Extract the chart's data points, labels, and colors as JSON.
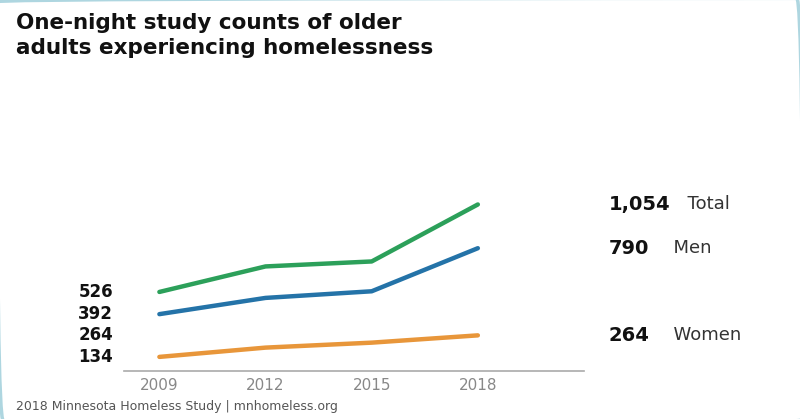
{
  "title": "One-night study counts of older\nadults experiencing homelessness",
  "years": [
    2009,
    2012,
    2015,
    2018
  ],
  "total": [
    526,
    680,
    710,
    1054
  ],
  "men": [
    392,
    490,
    530,
    790
  ],
  "women": [
    134,
    190,
    220,
    264
  ],
  "total_color": "#2ca05a",
  "men_color": "#2473a8",
  "women_color": "#e8963a",
  "line_width": 3.2,
  "background_color": "#ffffff",
  "border_color": "#aed6e0",
  "footer_text": "2018 Minnesota Homeless Study | mnhomeless.org",
  "ytick_vals": [
    134,
    392,
    526
  ],
  "ytick_strs": [
    "134",
    "392",
    "526"
  ],
  "xlim": [
    2008.0,
    2021.0
  ],
  "ylim": [
    50,
    1150
  ]
}
